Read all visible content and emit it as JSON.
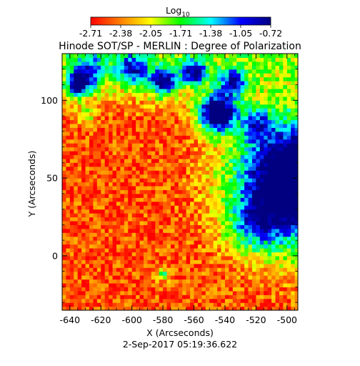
{
  "chart_data": {
    "type": "heatmap",
    "title": "Hinode SOT/SP - MERLIN : Degree of Polarization",
    "xlabel": "X (Arcseconds)",
    "ylabel": "Y (Arcseconds)",
    "xlim": [
      -645,
      -493
    ],
    "ylim": [
      -35,
      130
    ],
    "x_ticks": [
      -640,
      -620,
      -600,
      -580,
      -560,
      -540,
      -520,
      -500
    ],
    "y_ticks": [
      0,
      50,
      100
    ],
    "colorbar": {
      "label_base": "Log",
      "label_sub": "10",
      "ticks": [
        "-2.71",
        "-2.38",
        "-2.05",
        "-1.71",
        "-1.38",
        "-1.05",
        "-0.72"
      ],
      "min": -2.71,
      "max": -0.72,
      "colormap": [
        "#ff0000",
        "#ff8000",
        "#ffff00",
        "#00ff00",
        "#00ffff",
        "#0000ff",
        "#000080"
      ]
    },
    "timestamp": "2-Sep-2017 05:19:36.622"
  }
}
